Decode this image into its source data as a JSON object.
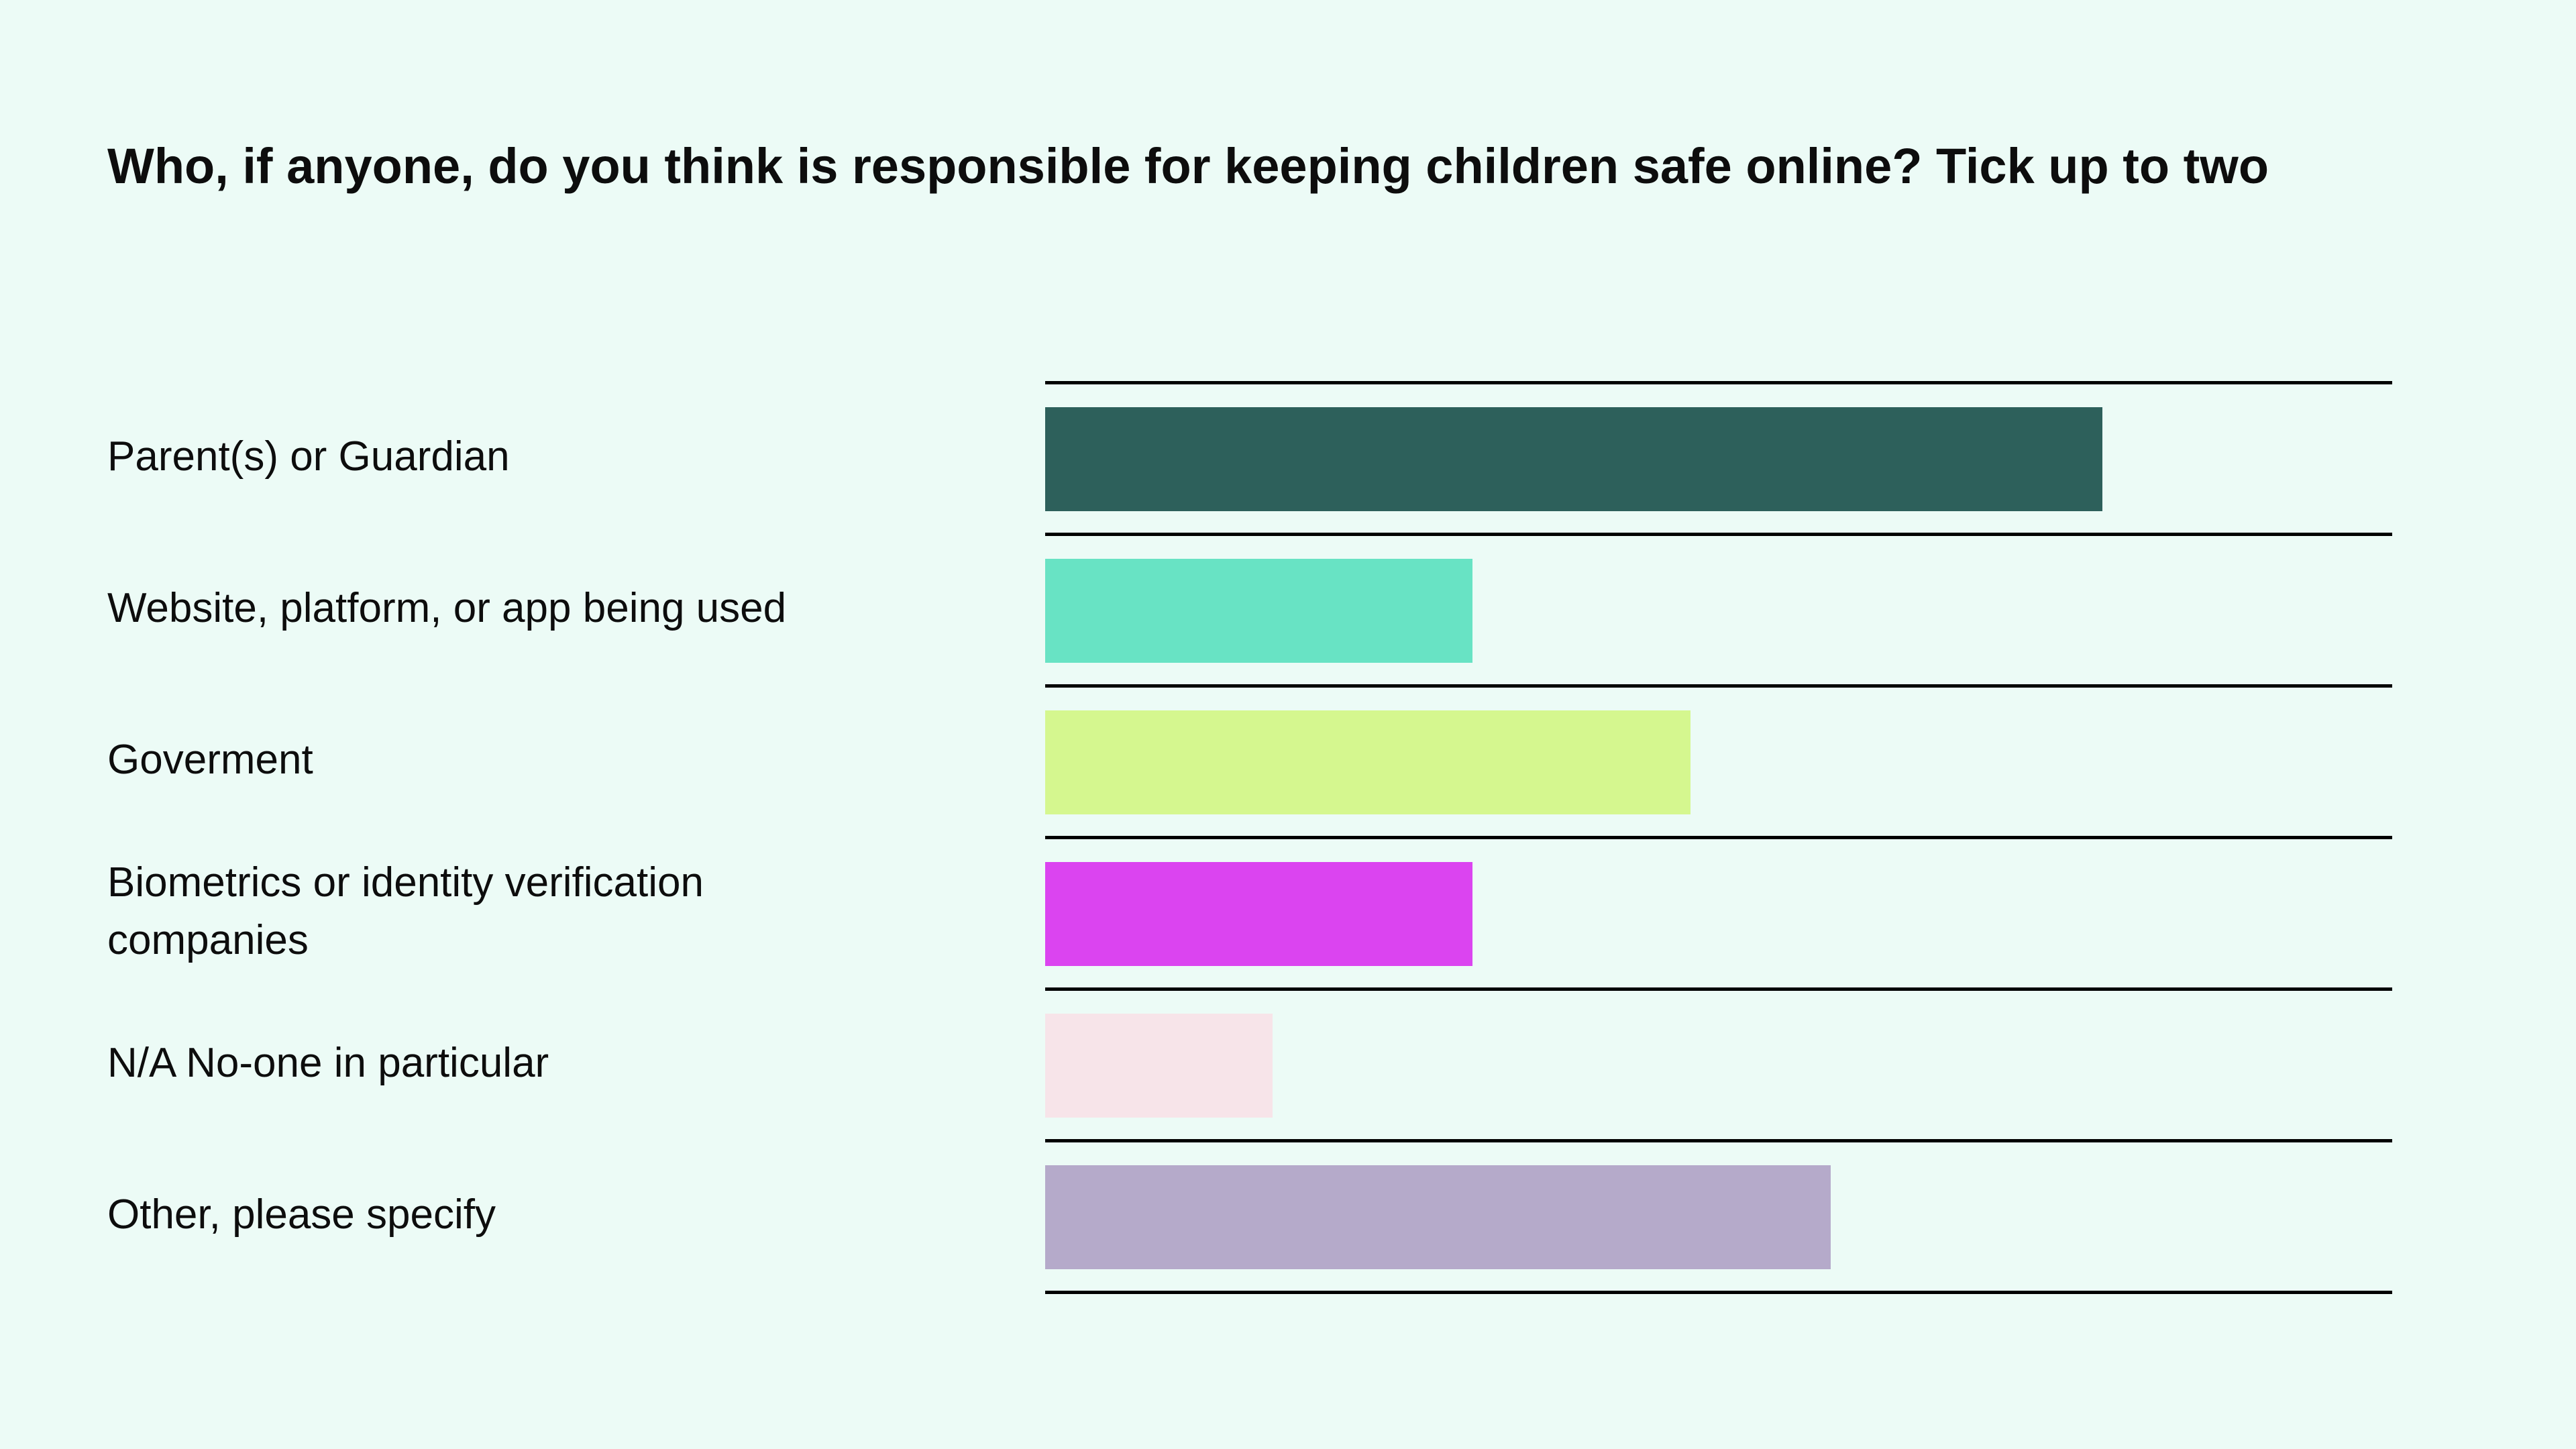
{
  "page": {
    "background_color": "#ECFBF6",
    "text_color": "#0D0D0D",
    "separator_color": "#000000"
  },
  "title": "Who, if anyone, do you think is responsible for keeping children safe online? Tick up to two",
  "chart_data": {
    "type": "bar",
    "orientation": "horizontal",
    "title": "Who, if anyone, do you think is responsible for keeping children safe online? Tick up to two",
    "categories": [
      "Parent(s) or Guardian",
      "Website, platform, or app being used",
      "Goverment",
      "Biometrics or identity verification companies",
      "N/A No-one in particular",
      "Other, please specify"
    ],
    "values": [
      78.5,
      31.7,
      47.9,
      31.7,
      16.9,
      58.3
    ],
    "value_unit": "percent of axis width, estimated (no data labels shown)",
    "xlim": [
      0,
      100
    ],
    "xlabel": "",
    "ylabel": "",
    "axis_ticks_shown": false,
    "data_labels_shown": false,
    "legend": "none",
    "grid": "horizontal row separator lines only",
    "row_separator_color": "#000000",
    "background": "#ECFBF6",
    "bar_colors": [
      "#2D605B",
      "#68E3C4",
      "#D5F78F",
      "#DB44F0",
      "#F7E4E9",
      "#B5AACA"
    ]
  },
  "rows": [
    {
      "label": "Parent(s) or Guardian",
      "value_pct": 78.5,
      "color": "#2D605B"
    },
    {
      "label": "Website, platform, or app being used",
      "value_pct": 31.7,
      "color": "#68E3C4"
    },
    {
      "label": "Goverment",
      "value_pct": 47.9,
      "color": "#D5F78F"
    },
    {
      "label": "Biometrics or identity verification\ncompanies",
      "value_pct": 31.7,
      "color": "#DB44F0"
    },
    {
      "label": "N/A No-one in particular",
      "value_pct": 16.9,
      "color": "#F7E4E9"
    },
    {
      "label": "Other, please specify",
      "value_pct": 58.3,
      "color": "#B5AACA"
    }
  ]
}
